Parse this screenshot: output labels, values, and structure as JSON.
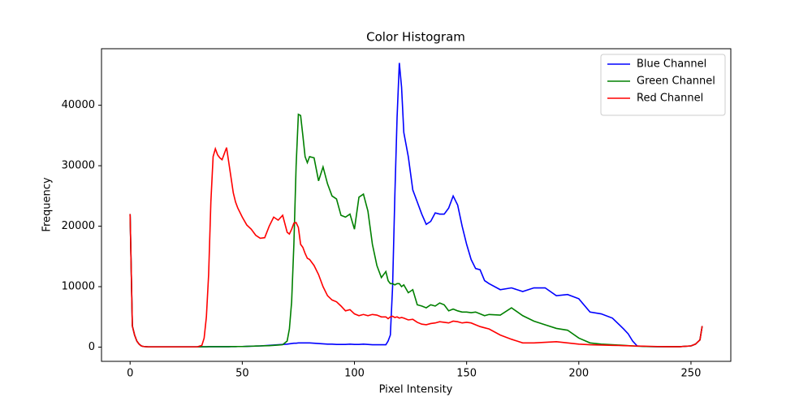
{
  "chart_data": {
    "type": "line",
    "title": "Color Histogram",
    "xlabel": "Pixel Intensity",
    "ylabel": "Frequency",
    "x": [
      0,
      1,
      2,
      3,
      4,
      5,
      6,
      8,
      10,
      15,
      20,
      25,
      30,
      32,
      33,
      34,
      35,
      36,
      37,
      38,
      39,
      40,
      41,
      42,
      43,
      44,
      45,
      46,
      47,
      48,
      50,
      52,
      54,
      56,
      58,
      60,
      62,
      64,
      66,
      68,
      70,
      71,
      72,
      73,
      74,
      75,
      76,
      77,
      78,
      79,
      80,
      82,
      84,
      86,
      88,
      90,
      92,
      94,
      96,
      98,
      100,
      102,
      104,
      106,
      108,
      110,
      112,
      114,
      115,
      116,
      117,
      118,
      119,
      120,
      121,
      122,
      124,
      126,
      128,
      130,
      132,
      134,
      136,
      138,
      140,
      142,
      144,
      146,
      148,
      150,
      152,
      154,
      156,
      158,
      160,
      165,
      170,
      175,
      180,
      185,
      190,
      195,
      200,
      205,
      210,
      215,
      220,
      222,
      224,
      226,
      230,
      235,
      240,
      245,
      250,
      252,
      254,
      255
    ],
    "series": [
      {
        "name": "Blue Channel",
        "color": "#0000ff",
        "values": [
          22000,
          3500,
          2000,
          1000,
          500,
          200,
          100,
          50,
          50,
          50,
          50,
          50,
          50,
          60,
          60,
          60,
          70,
          70,
          70,
          70,
          70,
          80,
          80,
          80,
          80,
          80,
          90,
          90,
          90,
          100,
          100,
          120,
          150,
          180,
          200,
          250,
          300,
          350,
          400,
          450,
          500,
          550,
          600,
          650,
          650,
          700,
          700,
          700,
          700,
          700,
          700,
          650,
          600,
          550,
          500,
          500,
          450,
          450,
          450,
          500,
          450,
          450,
          500,
          450,
          400,
          400,
          400,
          400,
          1000,
          2000,
          10000,
          25000,
          38000,
          47000,
          43000,
          35500,
          31500,
          26000,
          24000,
          22000,
          20300,
          20800,
          22200,
          22000,
          22000,
          23000,
          25000,
          23500,
          20000,
          17000,
          14500,
          13000,
          12800,
          11000,
          10500,
          9500,
          9800,
          9200,
          9800,
          9800,
          8500,
          8700,
          8000,
          5800,
          5500,
          4800,
          3000,
          2200,
          1000,
          200,
          100,
          80,
          80,
          80,
          200,
          500,
          1200,
          3500
        ]
      },
      {
        "name": "Green Channel",
        "color": "#008000",
        "values": [
          22000,
          3500,
          2000,
          1000,
          500,
          200,
          100,
          50,
          50,
          50,
          50,
          50,
          50,
          60,
          60,
          60,
          70,
          70,
          70,
          70,
          70,
          80,
          80,
          80,
          80,
          80,
          90,
          90,
          90,
          100,
          100,
          120,
          150,
          180,
          200,
          220,
          250,
          300,
          350,
          400,
          1000,
          3000,
          7500,
          17000,
          30000,
          38500,
          38300,
          35000,
          31500,
          30500,
          31500,
          31300,
          27500,
          29800,
          27000,
          25000,
          24500,
          21800,
          21500,
          22000,
          19500,
          24800,
          25300,
          22500,
          17000,
          13500,
          11500,
          12500,
          11000,
          10500,
          10500,
          10300,
          10500,
          10500,
          10000,
          10300,
          9000,
          9500,
          7000,
          6800,
          6500,
          7000,
          6800,
          7300,
          7000,
          6000,
          6300,
          6000,
          5800,
          5800,
          5700,
          5800,
          5500,
          5200,
          5400,
          5300,
          6500,
          5200,
          4300,
          3700,
          3100,
          2800,
          1500,
          700,
          500,
          400,
          300,
          250,
          200,
          150,
          100,
          80,
          80,
          80,
          200,
          500,
          1200,
          3500
        ]
      },
      {
        "name": "Red Channel",
        "color": "#ff0000",
        "values": [
          22000,
          3500,
          2000,
          1000,
          500,
          200,
          100,
          50,
          50,
          50,
          50,
          50,
          50,
          300,
          1500,
          5000,
          12000,
          24000,
          31500,
          32800,
          31800,
          31300,
          31000,
          32000,
          33000,
          30500,
          28000,
          25500,
          24000,
          23000,
          21500,
          20200,
          19500,
          18500,
          18000,
          18100,
          20000,
          21500,
          21000,
          21800,
          19000,
          18700,
          19500,
          20500,
          20600,
          19800,
          17000,
          16500,
          15500,
          14700,
          14500,
          13500,
          12000,
          10000,
          8500,
          7800,
          7500,
          6800,
          6000,
          6200,
          5500,
          5200,
          5400,
          5200,
          5400,
          5300,
          5000,
          5000,
          4700,
          5000,
          5100,
          4900,
          5000,
          4800,
          4900,
          4800,
          4500,
          4600,
          4100,
          3800,
          3700,
          3900,
          4000,
          4200,
          4100,
          4000,
          4300,
          4200,
          4000,
          4100,
          4000,
          3700,
          3400,
          3200,
          3000,
          2000,
          1300,
          700,
          700,
          800,
          900,
          700,
          500,
          400,
          350,
          300,
          250,
          220,
          200,
          180,
          150,
          100,
          80,
          80,
          200,
          500,
          1200,
          3500
        ]
      }
    ],
    "xlim": [
      -12.75,
      267.75
    ],
    "xticks": [
      0,
      50,
      100,
      150,
      200,
      250
    ],
    "ylim": [
      -2350,
      49350
    ],
    "yticks": [
      0,
      10000,
      20000,
      30000,
      40000
    ],
    "legend": "upper right"
  }
}
